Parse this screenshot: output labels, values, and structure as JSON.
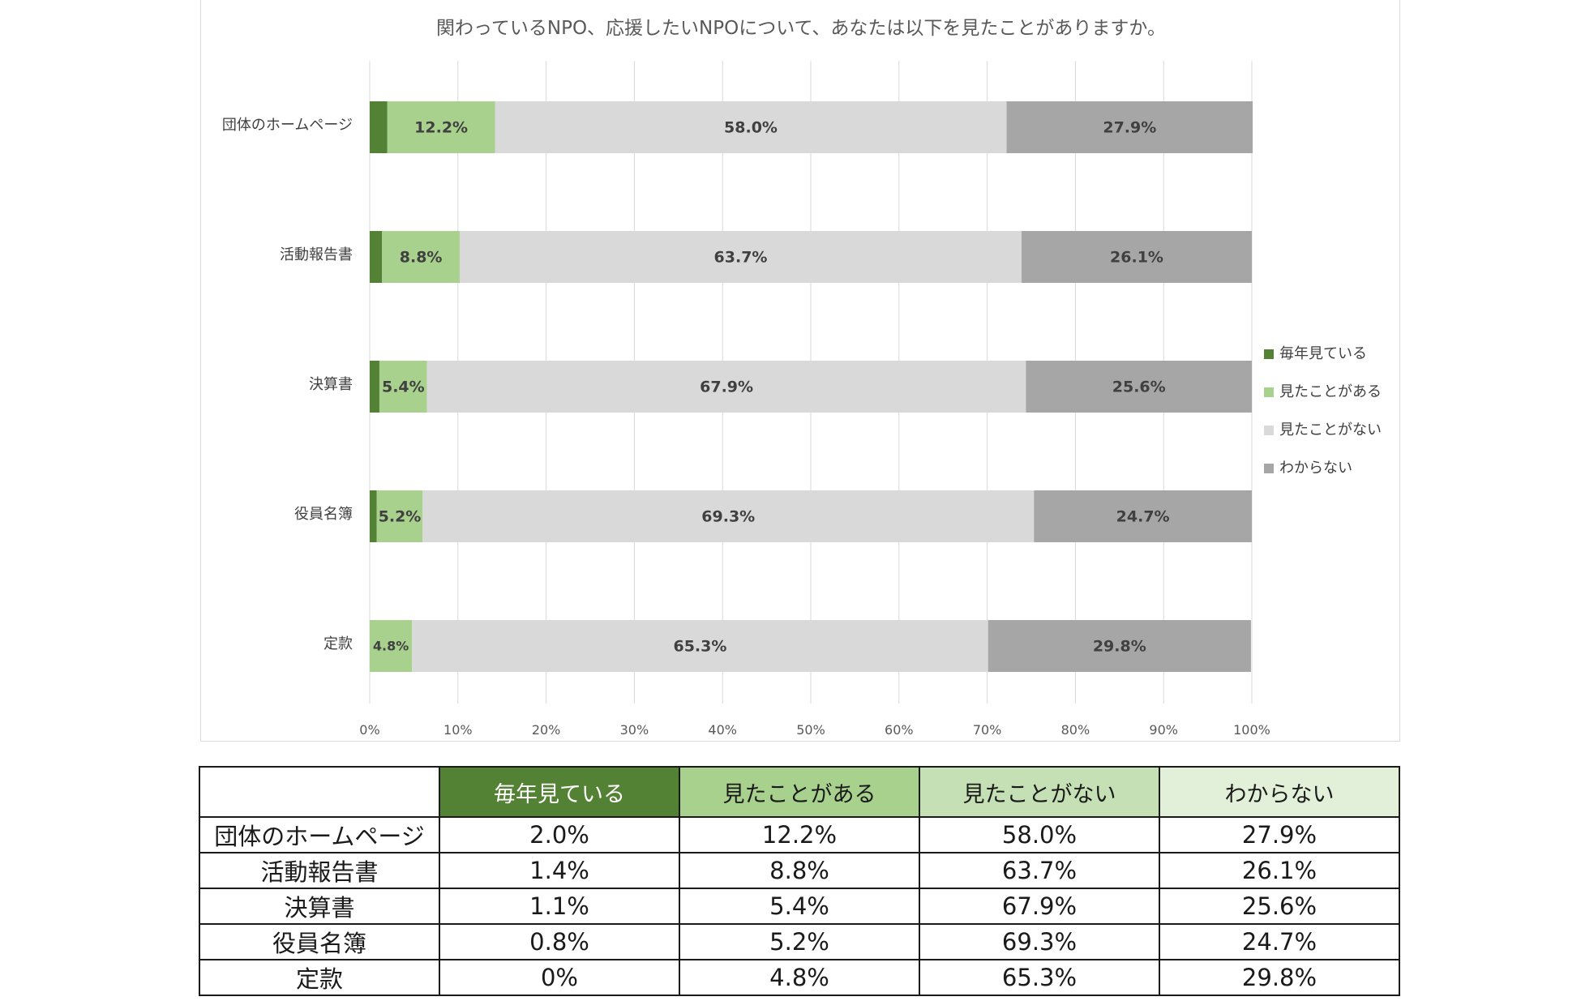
{
  "chart_data": {
    "type": "bar",
    "orientation": "horizontal",
    "stacked": "percent",
    "title": "関わっているNPO、応援したいNPOについて、あなたは以下を見たことがありますか。",
    "categories": [
      "団体のホームページ",
      "活動報告書",
      "決算書",
      "役員名簿",
      "定款"
    ],
    "series": [
      {
        "name": "毎年見ている",
        "color": "#548235",
        "values": [
          2.0,
          1.4,
          1.1,
          0.8,
          0.0
        ],
        "labels": [
          "",
          "",
          "",
          "",
          ""
        ]
      },
      {
        "name": "見たことがある",
        "color": "#a9d18e",
        "values": [
          12.2,
          8.8,
          5.4,
          5.2,
          4.8
        ],
        "labels": [
          "12.2%",
          "8.8%",
          "5.4%",
          "5.2%",
          "4.8%"
        ]
      },
      {
        "name": "見たことがない",
        "color": "#d9d9d9",
        "values": [
          58.0,
          63.7,
          67.9,
          69.3,
          65.3
        ],
        "labels": [
          "58.0%",
          "63.7%",
          "67.9%",
          "69.3%",
          "65.3%"
        ]
      },
      {
        "name": "わからない",
        "color": "#a6a6a6",
        "values": [
          27.9,
          26.1,
          25.6,
          24.7,
          29.8
        ],
        "labels": [
          "27.9%",
          "26.1%",
          "25.6%",
          "24.7%",
          "29.8%"
        ]
      }
    ],
    "xlim": [
      0,
      100
    ],
    "x_ticks": [
      "0%",
      "10%",
      "20%",
      "30%",
      "40%",
      "50%",
      "60%",
      "70%",
      "80%",
      "90%",
      "100%"
    ],
    "grid": true,
    "legend_position": "right"
  },
  "table": {
    "headers": [
      "",
      "毎年見ている",
      "見たことがある",
      "見たことがない",
      "わからない"
    ],
    "rows": [
      [
        "団体のホームページ",
        "2.0%",
        "12.2%",
        "58.0%",
        "27.9%"
      ],
      [
        "活動報告書",
        "1.4%",
        "8.8%",
        "63.7%",
        "26.1%"
      ],
      [
        "決算書",
        "1.1%",
        "5.4%",
        "67.9%",
        "25.6%"
      ],
      [
        "役員名簿",
        "0.8%",
        "5.2%",
        "69.3%",
        "24.7%"
      ],
      [
        "定款",
        "0%",
        "4.8%",
        "65.3%",
        "29.8%"
      ]
    ]
  }
}
